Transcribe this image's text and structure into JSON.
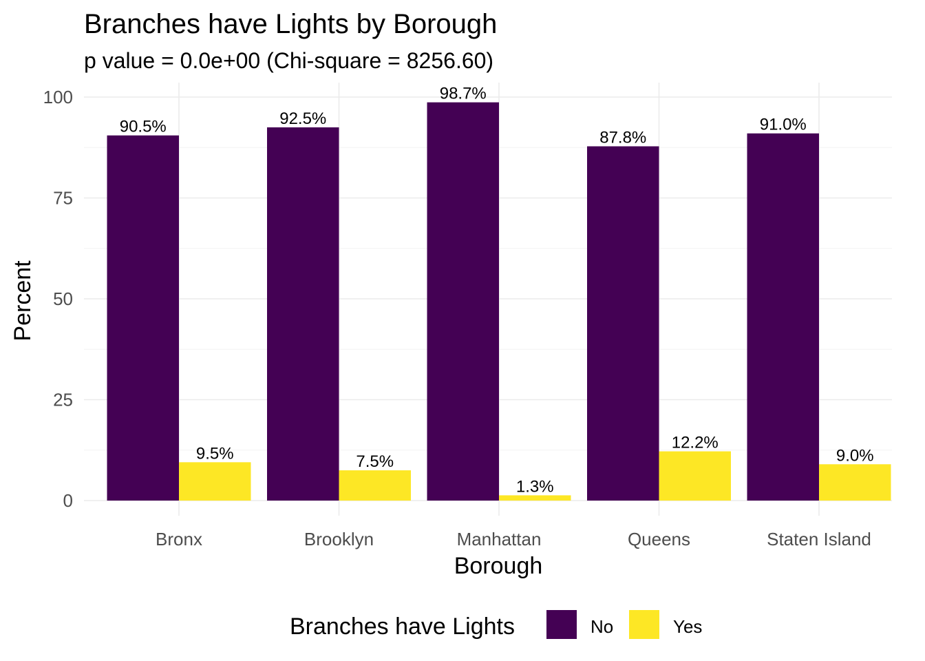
{
  "chart_data": {
    "type": "bar",
    "title": "Branches have Lights by Borough",
    "subtitle": "p value = 0.0e+00 (Chi-square = 8256.60)",
    "xlabel": "Borough",
    "ylabel": "Percent",
    "categories": [
      "Bronx",
      "Brooklyn",
      "Manhattan",
      "Queens",
      "Staten Island"
    ],
    "series": [
      {
        "name": "No",
        "color": "#440154",
        "values": [
          90.5,
          92.5,
          98.7,
          87.8,
          91.0
        ],
        "labels": [
          "90.5%",
          "92.5%",
          "98.7%",
          "87.8%",
          "91.0%"
        ]
      },
      {
        "name": "Yes",
        "color": "#FDE725",
        "values": [
          9.5,
          7.5,
          1.3,
          12.2,
          9.0
        ],
        "labels": [
          "9.5%",
          "7.5%",
          "1.3%",
          "12.2%",
          "9.0%"
        ]
      }
    ],
    "ylim": [
      0,
      100
    ],
    "yticks": [
      "0",
      "25",
      "50",
      "75",
      "100"
    ],
    "grid": true,
    "legend": {
      "title": "Branches have Lights",
      "position": "bottom"
    }
  }
}
